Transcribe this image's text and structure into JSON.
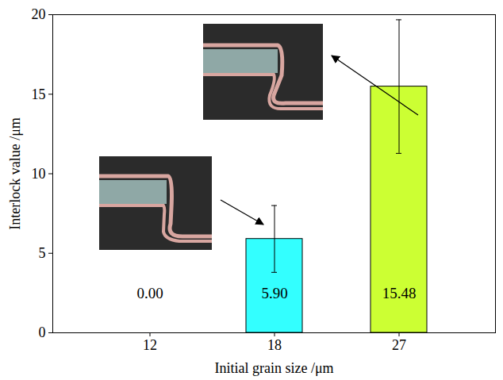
{
  "chart_data": {
    "type": "bar",
    "x_label": "Initial grain size /μm",
    "y_label": "Interlock value /μm",
    "categories": [
      "12",
      "18",
      "27"
    ],
    "values": [
      0,
      5.9,
      15.48
    ],
    "value_labels": [
      "0.00",
      "5.90",
      "15.48"
    ],
    "errors": [
      0,
      2.1,
      4.2
    ],
    "colors": [
      "#33ffff",
      "#33ffff",
      "#ccff33"
    ],
    "ylim": [
      0,
      20
    ],
    "yticks": [
      0,
      5,
      10,
      15,
      20
    ],
    "data_labels": true,
    "grid": false
  }
}
